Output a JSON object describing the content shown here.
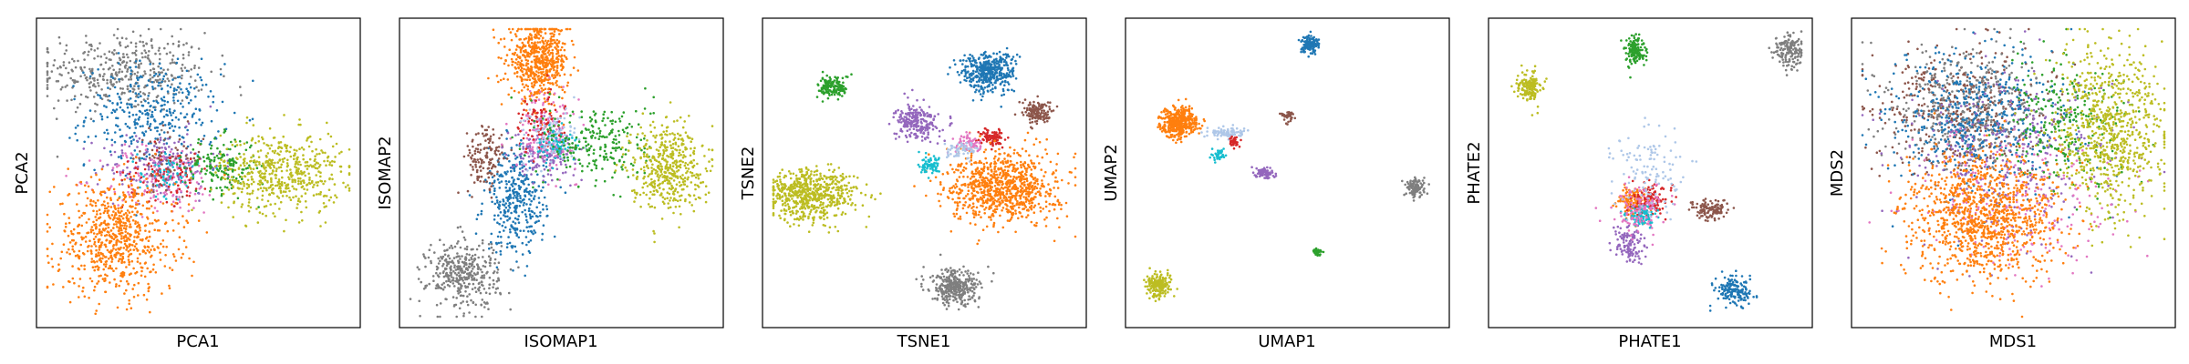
{
  "chart_data": [
    {
      "type": "scatter",
      "xlabel": "PCA1",
      "ylabel": "PCA2",
      "xticks": [],
      "yticks": [],
      "grid": false,
      "clusters": [
        {
          "color": "#7f7f7f",
          "cx": -0.5,
          "cy": 0.7,
          "sx": 0.28,
          "sy": 0.14,
          "n": 420
        },
        {
          "color": "#1f77b4",
          "cx": -0.3,
          "cy": 0.4,
          "sx": 0.22,
          "sy": 0.18,
          "n": 360
        },
        {
          "color": "#9467bd",
          "cx": -0.25,
          "cy": 0.05,
          "sx": 0.2,
          "sy": 0.12,
          "n": 180
        },
        {
          "color": "#e377c2",
          "cx": -0.25,
          "cy": -0.05,
          "sx": 0.2,
          "sy": 0.12,
          "n": 160
        },
        {
          "color": "#d62728",
          "cx": -0.2,
          "cy": 0.0,
          "sx": 0.15,
          "sy": 0.1,
          "n": 90
        },
        {
          "color": "#17becf",
          "cx": -0.2,
          "cy": 0.0,
          "sx": 0.1,
          "sy": 0.08,
          "n": 60
        },
        {
          "color": "#8c564b",
          "cx": -0.2,
          "cy": 0.1,
          "sx": 0.12,
          "sy": 0.1,
          "n": 60
        },
        {
          "color": "#2ca02c",
          "cx": 0.15,
          "cy": 0.05,
          "sx": 0.12,
          "sy": 0.1,
          "n": 160
        },
        {
          "color": "#bcbd22",
          "cx": 0.55,
          "cy": 0.0,
          "sx": 0.2,
          "sy": 0.14,
          "n": 520
        },
        {
          "color": "#ff7f0e",
          "cx": -0.55,
          "cy": -0.45,
          "sx": 0.2,
          "sy": 0.2,
          "n": 700
        }
      ]
    },
    {
      "type": "scatter",
      "xlabel": "ISOMAP1",
      "ylabel": "ISOMAP2",
      "xticks": [],
      "yticks": [],
      "grid": false,
      "clusters": [
        {
          "color": "#ff7f0e",
          "cx": -0.15,
          "cy": 0.78,
          "sx": 0.1,
          "sy": 0.13,
          "n": 600
        },
        {
          "color": "#7f7f7f",
          "cx": -0.65,
          "cy": -0.7,
          "sx": 0.12,
          "sy": 0.12,
          "n": 380
        },
        {
          "color": "#1f77b4",
          "cx": -0.3,
          "cy": -0.2,
          "sx": 0.1,
          "sy": 0.18,
          "n": 360
        },
        {
          "color": "#8c564b",
          "cx": -0.5,
          "cy": 0.1,
          "sx": 0.07,
          "sy": 0.12,
          "n": 140
        },
        {
          "color": "#9467bd",
          "cx": -0.1,
          "cy": 0.15,
          "sx": 0.1,
          "sy": 0.08,
          "n": 180
        },
        {
          "color": "#e377c2",
          "cx": -0.1,
          "cy": 0.3,
          "sx": 0.1,
          "sy": 0.14,
          "n": 140
        },
        {
          "color": "#d62728",
          "cx": -0.15,
          "cy": 0.35,
          "sx": 0.08,
          "sy": 0.1,
          "n": 90
        },
        {
          "color": "#aec7e8",
          "cx": -0.05,
          "cy": 0.25,
          "sx": 0.1,
          "sy": 0.1,
          "n": 90
        },
        {
          "color": "#17becf",
          "cx": -0.05,
          "cy": 0.2,
          "sx": 0.07,
          "sy": 0.06,
          "n": 60
        },
        {
          "color": "#2ca02c",
          "cx": 0.25,
          "cy": 0.2,
          "sx": 0.18,
          "sy": 0.15,
          "n": 240
        },
        {
          "color": "#bcbd22",
          "cx": 0.7,
          "cy": 0.05,
          "sx": 0.12,
          "sy": 0.15,
          "n": 460
        }
      ]
    },
    {
      "type": "scatter",
      "xlabel": "TSNE1",
      "ylabel": "TSNE2",
      "xticks": [],
      "yticks": [],
      "grid": false,
      "clusters": [
        {
          "color": "#1f77b4",
          "cx": 0.42,
          "cy": 0.7,
          "sx": 0.09,
          "sy": 0.07,
          "n": 420
        },
        {
          "color": "#2ca02c",
          "cx": -0.6,
          "cy": 0.6,
          "sx": 0.05,
          "sy": 0.04,
          "n": 140
        },
        {
          "color": "#8c564b",
          "cx": 0.75,
          "cy": 0.42,
          "sx": 0.05,
          "sy": 0.04,
          "n": 140
        },
        {
          "color": "#9467bd",
          "cx": -0.05,
          "cy": 0.35,
          "sx": 0.07,
          "sy": 0.06,
          "n": 240
        },
        {
          "color": "#d62728",
          "cx": 0.45,
          "cy": 0.25,
          "sx": 0.04,
          "sy": 0.03,
          "n": 90
        },
        {
          "color": "#ff7f0e",
          "cx": 0.52,
          "cy": -0.1,
          "sx": 0.18,
          "sy": 0.12,
          "n": 900
        },
        {
          "color": "#bcbd22",
          "cx": -0.75,
          "cy": -0.15,
          "sx": 0.15,
          "sy": 0.09,
          "n": 640
        },
        {
          "color": "#7f7f7f",
          "cx": 0.2,
          "cy": -0.8,
          "sx": 0.08,
          "sy": 0.06,
          "n": 340
        },
        {
          "color": "#17becf",
          "cx": 0.05,
          "cy": 0.05,
          "sx": 0.04,
          "sy": 0.03,
          "n": 70
        },
        {
          "color": "#e377c2",
          "cx": 0.3,
          "cy": 0.2,
          "sx": 0.05,
          "sy": 0.03,
          "n": 70
        },
        {
          "color": "#aec7e8",
          "cx": 0.25,
          "cy": 0.15,
          "sx": 0.05,
          "sy": 0.03,
          "n": 60
        }
      ]
    },
    {
      "type": "scatter",
      "xlabel": "UMAP1",
      "ylabel": "UMAP2",
      "xticks": [],
      "yticks": [],
      "grid": false,
      "clusters": [
        {
          "color": "#1f77b4",
          "cx": 0.15,
          "cy": 0.9,
          "sx": 0.03,
          "sy": 0.03,
          "n": 140
        },
        {
          "color": "#ff7f0e",
          "cx": -0.72,
          "cy": 0.35,
          "sx": 0.06,
          "sy": 0.05,
          "n": 420
        },
        {
          "color": "#8c564b",
          "cx": 0.0,
          "cy": 0.4,
          "sx": 0.02,
          "sy": 0.02,
          "n": 40
        },
        {
          "color": "#aec7e8",
          "cx": -0.4,
          "cy": 0.28,
          "sx": 0.06,
          "sy": 0.02,
          "n": 80
        },
        {
          "color": "#d62728",
          "cx": -0.35,
          "cy": 0.22,
          "sx": 0.02,
          "sy": 0.02,
          "n": 40
        },
        {
          "color": "#17becf",
          "cx": -0.45,
          "cy": 0.12,
          "sx": 0.02,
          "sy": 0.02,
          "n": 40
        },
        {
          "color": "#9467bd",
          "cx": -0.15,
          "cy": 0.0,
          "sx": 0.03,
          "sy": 0.02,
          "n": 80
        },
        {
          "color": "#7f7f7f",
          "cx": 0.85,
          "cy": -0.1,
          "sx": 0.03,
          "sy": 0.03,
          "n": 120
        },
        {
          "color": "#2ca02c",
          "cx": 0.2,
          "cy": -0.55,
          "sx": 0.015,
          "sy": 0.015,
          "n": 30
        },
        {
          "color": "#bcbd22",
          "cx": -0.85,
          "cy": -0.78,
          "sx": 0.04,
          "sy": 0.04,
          "n": 200
        }
      ]
    },
    {
      "type": "scatter",
      "xlabel": "PHATE1",
      "ylabel": "PHATE2",
      "xticks": [],
      "yticks": [],
      "grid": false,
      "clusters": [
        {
          "color": "#2ca02c",
          "cx": -0.1,
          "cy": 0.85,
          "sx": 0.03,
          "sy": 0.05,
          "n": 140
        },
        {
          "color": "#bcbd22",
          "cx": -0.8,
          "cy": 0.6,
          "sx": 0.04,
          "sy": 0.05,
          "n": 160
        },
        {
          "color": "#7f7f7f",
          "cx": 0.92,
          "cy": 0.85,
          "sx": 0.05,
          "sy": 0.06,
          "n": 160
        },
        {
          "color": "#ff7f0e",
          "cx": -0.12,
          "cy": -0.2,
          "sx": 0.05,
          "sy": 0.05,
          "n": 120
        },
        {
          "color": "#d62728",
          "cx": 0.0,
          "cy": -0.2,
          "sx": 0.06,
          "sy": 0.05,
          "n": 140
        },
        {
          "color": "#8c564b",
          "cx": 0.4,
          "cy": -0.25,
          "sx": 0.06,
          "sy": 0.04,
          "n": 120
        },
        {
          "color": "#9467bd",
          "cx": -0.15,
          "cy": -0.5,
          "sx": 0.05,
          "sy": 0.06,
          "n": 120
        },
        {
          "color": "#17becf",
          "cx": -0.05,
          "cy": -0.3,
          "sx": 0.05,
          "sy": 0.04,
          "n": 100
        },
        {
          "color": "#e377c2",
          "cx": -0.08,
          "cy": -0.25,
          "sx": 0.08,
          "sy": 0.08,
          "n": 120
        },
        {
          "color": "#aec7e8",
          "cx": 0.0,
          "cy": 0.0,
          "sx": 0.12,
          "sy": 0.15,
          "n": 120
        },
        {
          "color": "#1f77b4",
          "cx": 0.55,
          "cy": -0.82,
          "sx": 0.06,
          "sy": 0.05,
          "n": 160
        }
      ]
    },
    {
      "type": "scatter",
      "xlabel": "MDS1",
      "ylabel": "MDS2",
      "xticks": [],
      "yticks": [],
      "grid": false,
      "clusters": [
        {
          "color": "#8c564b",
          "cx": -0.35,
          "cy": 0.45,
          "sx": 0.28,
          "sy": 0.22,
          "n": 420
        },
        {
          "color": "#7f7f7f",
          "cx": -0.3,
          "cy": 0.45,
          "sx": 0.25,
          "sy": 0.22,
          "n": 420
        },
        {
          "color": "#1f77b4",
          "cx": -0.25,
          "cy": 0.35,
          "sx": 0.3,
          "sy": 0.25,
          "n": 520
        },
        {
          "color": "#9467bd",
          "cx": 0.0,
          "cy": 0.1,
          "sx": 0.35,
          "sy": 0.3,
          "n": 320
        },
        {
          "color": "#e377c2",
          "cx": 0.05,
          "cy": -0.2,
          "sx": 0.35,
          "sy": 0.25,
          "n": 220
        },
        {
          "color": "#2ca02c",
          "cx": 0.35,
          "cy": 0.35,
          "sx": 0.22,
          "sy": 0.22,
          "n": 260
        },
        {
          "color": "#bcbd22",
          "cx": 0.65,
          "cy": 0.3,
          "sx": 0.18,
          "sy": 0.28,
          "n": 760
        },
        {
          "color": "#ff7f0e",
          "cx": -0.2,
          "cy": -0.3,
          "sx": 0.25,
          "sy": 0.22,
          "n": 1100
        }
      ]
    }
  ]
}
